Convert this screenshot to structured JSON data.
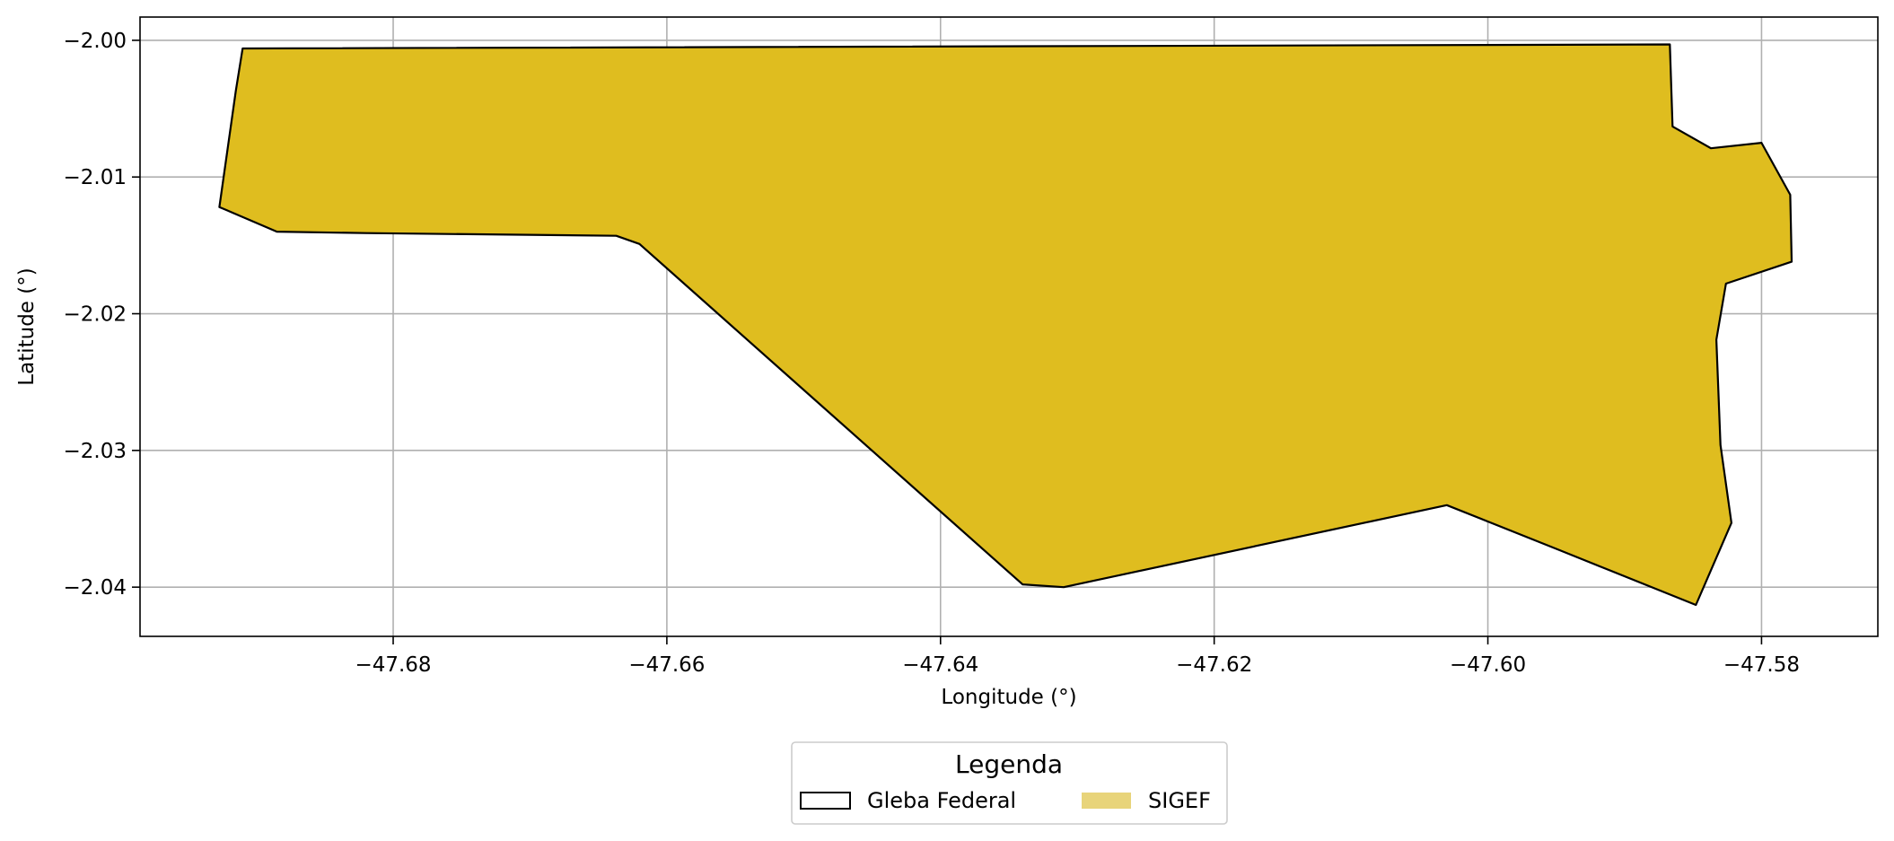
{
  "chart_data": {
    "type": "map",
    "xlabel": "Longitude (°)",
    "ylabel": "Latitude (°)",
    "xlim": [
      -47.6985,
      -47.5715
    ],
    "ylim": [
      -2.0436,
      -1.9983
    ],
    "xticks": [
      -47.68,
      -47.66,
      -47.64,
      -47.62,
      -47.6,
      -47.58
    ],
    "xtick_labels": [
      "−47.68",
      "−47.66",
      "−47.64",
      "−47.62",
      "−47.60",
      "−47.58"
    ],
    "yticks": [
      -2.0,
      -2.01,
      -2.02,
      -2.03,
      -2.04
    ],
    "ytick_labels": [
      "−2.00",
      "−2.01",
      "−2.02",
      "−2.03",
      "−2.04"
    ],
    "grid": true,
    "legend": {
      "title": "Legenda",
      "placement": "bottom-center",
      "entries": [
        {
          "name": "Gleba Federal",
          "style": "outline",
          "edge_color": "#000000",
          "face_color": "none"
        },
        {
          "name": "SIGEF",
          "style": "fill",
          "face_color": "#e8d47a"
        }
      ]
    },
    "layers": [
      {
        "name": "SIGEF",
        "face_color": "#dfbd1f",
        "edge_color": "#000000",
        "polygon": [
          [
            -47.691,
            -2.0006
          ],
          [
            -47.5867,
            -2.0003
          ],
          [
            -47.5865,
            -2.0063
          ],
          [
            -47.5837,
            -2.0079
          ],
          [
            -47.58,
            -2.0075
          ],
          [
            -47.5779,
            -2.0113
          ],
          [
            -47.5778,
            -2.0162
          ],
          [
            -47.5826,
            -2.0178
          ],
          [
            -47.5833,
            -2.0219
          ],
          [
            -47.583,
            -2.0296
          ],
          [
            -47.5822,
            -2.0353
          ],
          [
            -47.5848,
            -2.0413
          ],
          [
            -47.595,
            -2.0372
          ],
          [
            -47.603,
            -2.034
          ],
          [
            -47.631,
            -2.04
          ],
          [
            -47.634,
            -2.0398
          ],
          [
            -47.662,
            -2.0149
          ],
          [
            -47.6637,
            -2.0143
          ],
          [
            -47.682,
            -2.0141
          ],
          [
            -47.6885,
            -2.014
          ],
          [
            -47.6927,
            -2.0122
          ],
          [
            -47.6915,
            -2.0037
          ]
        ]
      }
    ]
  }
}
